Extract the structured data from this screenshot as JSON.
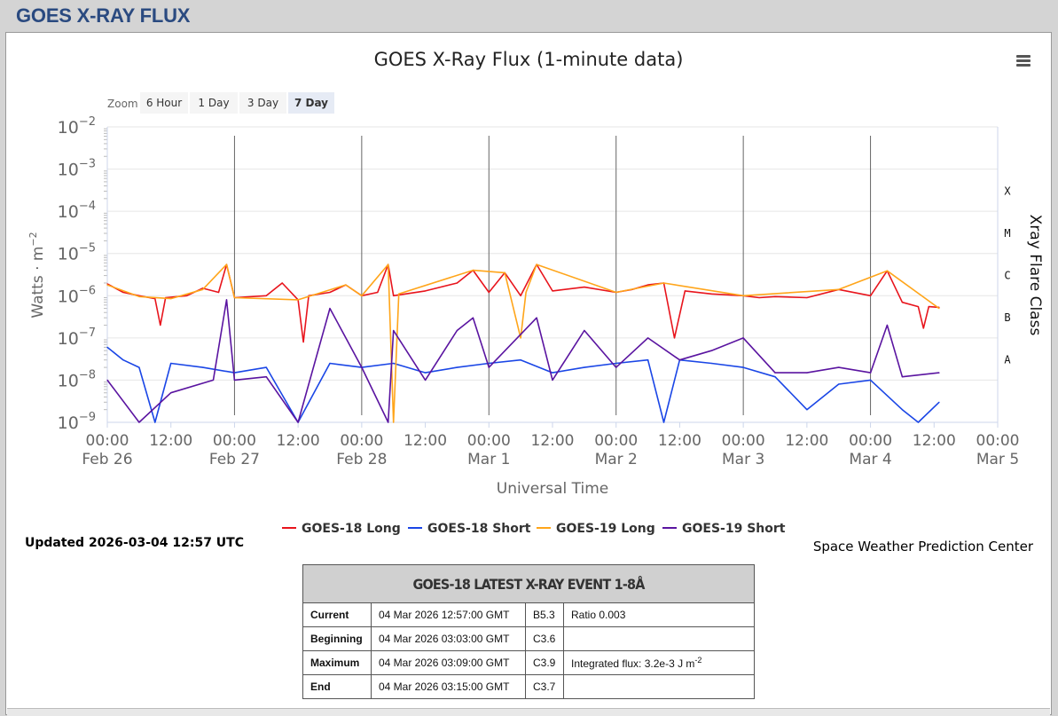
{
  "page": {
    "header": "GOES X-RAY FLUX"
  },
  "chart": {
    "title": "GOES X-Ray Flux (1-minute data)",
    "zoom": {
      "label": "Zoom",
      "options": [
        "6 Hour",
        "1 Day",
        "3 Day",
        "7 Day"
      ],
      "selected": "7 Day"
    },
    "ylabel": "Watts · m",
    "ylabel_exp": "−2",
    "yticks": [
      {
        "base": "10",
        "exp": "−2"
      },
      {
        "base": "10",
        "exp": "−3"
      },
      {
        "base": "10",
        "exp": "−4"
      },
      {
        "base": "10",
        "exp": "−5"
      },
      {
        "base": "10",
        "exp": "−6"
      },
      {
        "base": "10",
        "exp": "−7"
      },
      {
        "base": "10",
        "exp": "−8"
      },
      {
        "base": "10",
        "exp": "−9"
      }
    ],
    "right_axis_title": "Xray Flare Class",
    "flare_classes": [
      "X",
      "M",
      "C",
      "B",
      "A"
    ],
    "xlabel": "Universal Time",
    "xticks": [
      {
        "time": "00:00",
        "date": "Feb 26"
      },
      {
        "time": "12:00",
        "date": ""
      },
      {
        "time": "00:00",
        "date": "Feb 27"
      },
      {
        "time": "12:00",
        "date": ""
      },
      {
        "time": "00:00",
        "date": "Feb 28"
      },
      {
        "time": "12:00",
        "date": ""
      },
      {
        "time": "00:00",
        "date": "Mar 1"
      },
      {
        "time": "12:00",
        "date": ""
      },
      {
        "time": "00:00",
        "date": "Mar 2"
      },
      {
        "time": "12:00",
        "date": ""
      },
      {
        "time": "00:00",
        "date": "Mar 3"
      },
      {
        "time": "12:00",
        "date": ""
      },
      {
        "time": "00:00",
        "date": "Mar 4"
      },
      {
        "time": "12:00",
        "date": ""
      },
      {
        "time": "00:00",
        "date": "Mar 5"
      }
    ],
    "legend": [
      {
        "name": "GOES-18 Long",
        "color": "#e8141c"
      },
      {
        "name": "GOES-18 Short",
        "color": "#1a46e6"
      },
      {
        "name": "GOES-19 Long",
        "color": "#ffa51a"
      },
      {
        "name": "GOES-19 Short",
        "color": "#5a14a0"
      }
    ]
  },
  "chart_data": {
    "type": "line",
    "title": "GOES X-Ray Flux (1-minute data)",
    "xlabel": "Universal Time",
    "ylabel": "Watts · m−2",
    "yscale": "log",
    "ylim": [
      1e-09,
      0.01
    ],
    "xlim": [
      "2026-02-26 00:00",
      "2026-03-05 00:00"
    ],
    "grid": true,
    "legend_position": "bottom",
    "series": [
      {
        "name": "GOES-18 Long",
        "color": "#e8141c",
        "points": [
          [
            "2026-02-26 00:00",
            1.9e-06
          ],
          [
            "2026-02-26 03:00",
            1.2e-06
          ],
          [
            "2026-02-26 06:00",
            1e-06
          ],
          [
            "2026-02-26 09:00",
            8.5e-07
          ],
          [
            "2026-02-26 10:00",
            2e-07
          ],
          [
            "2026-02-26 11:00",
            9e-07
          ],
          [
            "2026-02-26 15:00",
            1e-06
          ],
          [
            "2026-02-26 18:00",
            1.5e-06
          ],
          [
            "2026-02-26 21:00",
            1.2e-06
          ],
          [
            "2026-02-26 22:30",
            5.5e-06
          ],
          [
            "2026-02-27 00:00",
            9e-07
          ],
          [
            "2026-02-27 06:00",
            1e-06
          ],
          [
            "2026-02-27 09:00",
            2e-06
          ],
          [
            "2026-02-27 12:00",
            8e-07
          ],
          [
            "2026-02-27 13:00",
            8e-08
          ],
          [
            "2026-02-27 14:00",
            1e-06
          ],
          [
            "2026-02-27 18:00",
            1.2e-06
          ],
          [
            "2026-02-27 21:00",
            1.8e-06
          ],
          [
            "2026-02-28 00:00",
            1e-06
          ],
          [
            "2026-02-28 03:00",
            1.2e-06
          ],
          [
            "2026-02-28 05:00",
            5.5e-06
          ],
          [
            "2026-02-28 06:00",
            1e-06
          ],
          [
            "2026-02-28 12:00",
            1.3e-06
          ],
          [
            "2026-02-28 18:00",
            2e-06
          ],
          [
            "2026-02-28 21:00",
            4e-06
          ],
          [
            "2026-03-01 00:00",
            1.2e-06
          ],
          [
            "2026-03-01 03:00",
            3.5e-06
          ],
          [
            "2026-03-01 06:00",
            1e-06
          ],
          [
            "2026-03-01 09:00",
            5.5e-06
          ],
          [
            "2026-03-01 12:00",
            1.3e-06
          ],
          [
            "2026-03-01 18:00",
            1.6e-06
          ],
          [
            "2026-03-02 00:00",
            1.2e-06
          ],
          [
            "2026-03-02 03:00",
            1.4e-06
          ],
          [
            "2026-03-02 06:00",
            1.8e-06
          ],
          [
            "2026-03-02 09:00",
            2e-06
          ],
          [
            "2026-03-02 11:00",
            1e-07
          ],
          [
            "2026-03-02 13:00",
            1.3e-06
          ],
          [
            "2026-03-02 18:00",
            1.1e-06
          ],
          [
            "2026-03-03 00:00",
            1e-06
          ],
          [
            "2026-03-03 03:00",
            9e-07
          ],
          [
            "2026-03-03 06:00",
            9.5e-07
          ],
          [
            "2026-03-03 12:00",
            9e-07
          ],
          [
            "2026-03-03 18:00",
            1.4e-06
          ],
          [
            "2026-03-04 00:00",
            1e-06
          ],
          [
            "2026-03-04 03:09",
            3.9e-06
          ],
          [
            "2026-03-04 06:00",
            7e-07
          ],
          [
            "2026-03-04 09:00",
            5.5e-07
          ],
          [
            "2026-03-04 10:00",
            1.7e-07
          ],
          [
            "2026-03-04 11:00",
            5.5e-07
          ],
          [
            "2026-03-04 12:57",
            5.3e-07
          ]
        ]
      },
      {
        "name": "GOES-18 Short",
        "color": "#1a46e6",
        "points": [
          [
            "2026-02-26 00:00",
            6e-08
          ],
          [
            "2026-02-26 03:00",
            3e-08
          ],
          [
            "2026-02-26 06:00",
            2e-08
          ],
          [
            "2026-02-26 09:00",
            1e-09
          ],
          [
            "2026-02-26 12:00",
            2.5e-08
          ],
          [
            "2026-02-26 18:00",
            2e-08
          ],
          [
            "2026-02-27 00:00",
            1.5e-08
          ],
          [
            "2026-02-27 06:00",
            2e-08
          ],
          [
            "2026-02-27 12:00",
            1e-09
          ],
          [
            "2026-02-27 18:00",
            2.5e-08
          ],
          [
            "2026-02-28 00:00",
            2e-08
          ],
          [
            "2026-02-28 06:00",
            2.5e-08
          ],
          [
            "2026-02-28 12:00",
            1.5e-08
          ],
          [
            "2026-02-28 18:00",
            2e-08
          ],
          [
            "2026-03-01 00:00",
            2.5e-08
          ],
          [
            "2026-03-01 06:00",
            3e-08
          ],
          [
            "2026-03-01 12:00",
            1.5e-08
          ],
          [
            "2026-03-01 18:00",
            2e-08
          ],
          [
            "2026-03-02 00:00",
            2.5e-08
          ],
          [
            "2026-03-02 06:00",
            3e-08
          ],
          [
            "2026-03-02 09:00",
            1e-09
          ],
          [
            "2026-03-02 12:00",
            3e-08
          ],
          [
            "2026-03-02 18:00",
            2.5e-08
          ],
          [
            "2026-03-03 00:00",
            2e-08
          ],
          [
            "2026-03-03 06:00",
            1.2e-08
          ],
          [
            "2026-03-03 12:00",
            2e-09
          ],
          [
            "2026-03-03 18:00",
            8e-09
          ],
          [
            "2026-03-04 00:00",
            1e-08
          ],
          [
            "2026-03-04 06:00",
            2e-09
          ],
          [
            "2026-03-04 09:00",
            1e-09
          ],
          [
            "2026-03-04 12:57",
            3e-09
          ]
        ]
      },
      {
        "name": "GOES-19 Long",
        "color": "#ffa51a",
        "points": [
          [
            "2026-02-26 00:00",
            1.8e-06
          ],
          [
            "2026-02-26 06:00",
            9.5e-07
          ],
          [
            "2026-02-26 12:00",
            8.5e-07
          ],
          [
            "2026-02-26 18:00",
            1.4e-06
          ],
          [
            "2026-02-26 22:30",
            5.5e-06
          ],
          [
            "2026-02-27 00:00",
            9e-07
          ],
          [
            "2026-02-27 12:00",
            8e-07
          ],
          [
            "2026-02-27 21:00",
            1.8e-06
          ],
          [
            "2026-02-28 00:00",
            1e-06
          ],
          [
            "2026-02-28 05:00",
            5.5e-06
          ],
          [
            "2026-02-28 06:00",
            1e-09
          ],
          [
            "2026-02-28 07:00",
            1.1e-06
          ],
          [
            "2026-02-28 21:00",
            4e-06
          ],
          [
            "2026-03-01 03:00",
            3.5e-06
          ],
          [
            "2026-03-01 06:00",
            1e-07
          ],
          [
            "2026-03-01 07:00",
            1.2e-06
          ],
          [
            "2026-03-01 09:00",
            5.5e-06
          ],
          [
            "2026-03-02 00:00",
            1.2e-06
          ],
          [
            "2026-03-02 09:00",
            2e-06
          ],
          [
            "2026-03-03 00:00",
            1e-06
          ],
          [
            "2026-03-03 18:00",
            1.4e-06
          ],
          [
            "2026-03-04 03:09",
            3.9e-06
          ],
          [
            "2026-03-04 12:57",
            5e-07
          ]
        ]
      },
      {
        "name": "GOES-19 Short",
        "color": "#5a14a0",
        "points": [
          [
            "2026-02-26 00:00",
            1e-08
          ],
          [
            "2026-02-26 06:00",
            1e-09
          ],
          [
            "2026-02-26 12:00",
            5e-09
          ],
          [
            "2026-02-26 20:00",
            1e-08
          ],
          [
            "2026-02-26 22:30",
            8e-07
          ],
          [
            "2026-02-27 00:00",
            1e-08
          ],
          [
            "2026-02-27 06:00",
            1.2e-08
          ],
          [
            "2026-02-27 12:00",
            1e-09
          ],
          [
            "2026-02-27 18:00",
            5e-07
          ],
          [
            "2026-02-28 00:00",
            2e-08
          ],
          [
            "2026-02-28 05:00",
            1e-09
          ],
          [
            "2026-02-28 06:00",
            1.5e-07
          ],
          [
            "2026-02-28 12:00",
            1e-08
          ],
          [
            "2026-02-28 18:00",
            1.5e-07
          ],
          [
            "2026-02-28 21:00",
            3e-07
          ],
          [
            "2026-03-01 00:00",
            2e-08
          ],
          [
            "2026-03-01 09:00",
            3e-07
          ],
          [
            "2026-03-01 12:00",
            1e-08
          ],
          [
            "2026-03-01 18:00",
            1.5e-07
          ],
          [
            "2026-03-02 00:00",
            2e-08
          ],
          [
            "2026-03-02 06:00",
            1e-07
          ],
          [
            "2026-03-02 12:00",
            3e-08
          ],
          [
            "2026-03-02 18:00",
            5e-08
          ],
          [
            "2026-03-03 00:00",
            1e-07
          ],
          [
            "2026-03-03 06:00",
            1.5e-08
          ],
          [
            "2026-03-03 12:00",
            1.5e-08
          ],
          [
            "2026-03-03 18:00",
            2e-08
          ],
          [
            "2026-03-04 00:00",
            1.5e-08
          ],
          [
            "2026-03-04 03:09",
            2e-07
          ],
          [
            "2026-03-04 06:00",
            1.2e-08
          ],
          [
            "2026-03-04 12:57",
            1.5e-08
          ]
        ]
      }
    ]
  },
  "updated": "Updated 2026-03-04 12:57 UTC",
  "credit": "Space Weather Prediction Center",
  "event": {
    "title": "GOES-18 LATEST X-RAY EVENT 1-8Å",
    "rows": [
      {
        "label": "Current",
        "time": "04 Mar 2026 12:57:00 GMT",
        "class": "B5.3",
        "extra": "Ratio 0.003",
        "extra_exp": ""
      },
      {
        "label": "Beginning",
        "time": "04 Mar 2026 03:03:00 GMT",
        "class": "C3.6",
        "extra": "",
        "extra_exp": ""
      },
      {
        "label": "Maximum",
        "time": "04 Mar 2026 03:09:00 GMT",
        "class": "C3.9",
        "extra": "Integrated flux: 3.2e-3 J m",
        "extra_exp": "-2"
      },
      {
        "label": "End",
        "time": "04 Mar 2026 03:15:00 GMT",
        "class": "C3.7",
        "extra": "",
        "extra_exp": ""
      }
    ]
  }
}
